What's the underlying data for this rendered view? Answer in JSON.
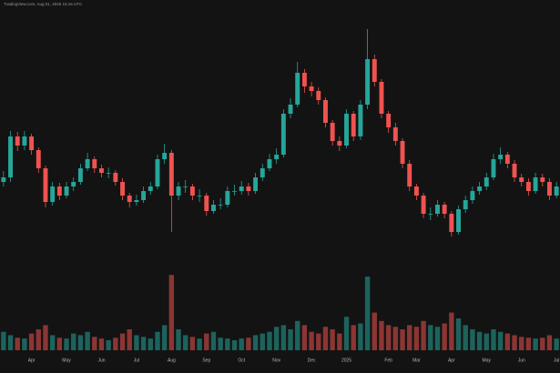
{
  "chart_data": {
    "type": "candlestick",
    "title": "TradingView.com, Aug 01, 2025 15:16 UTC",
    "categories": [
      null,
      null,
      null,
      null,
      "Apr",
      null,
      null,
      null,
      null,
      "May",
      null,
      null,
      null,
      null,
      "Jun",
      null,
      null,
      null,
      null,
      "Jul",
      null,
      null,
      null,
      null,
      "Aug",
      null,
      null,
      null,
      null,
      "Sep",
      null,
      null,
      null,
      null,
      "Oct",
      null,
      null,
      null,
      null,
      "Nov",
      null,
      null,
      null,
      null,
      "Dec",
      null,
      null,
      null,
      null,
      "2025",
      null,
      null,
      null,
      null,
      null,
      "Feb",
      null,
      null,
      null,
      "Mar",
      null,
      null,
      null,
      null,
      "Apr",
      null,
      null,
      null,
      null,
      "May",
      null,
      null,
      null,
      null,
      "Jun",
      null,
      null,
      null,
      null,
      "Jul"
    ],
    "open": [
      100,
      105,
      150,
      140,
      150,
      135,
      115,
      78,
      95,
      85,
      95,
      100,
      115,
      125,
      115,
      110,
      110,
      100,
      85,
      78,
      80,
      90,
      95,
      125,
      132,
      85,
      95,
      95,
      85,
      85,
      68,
      75,
      75,
      90,
      90,
      95,
      90,
      105,
      115,
      125,
      130,
      175,
      185,
      220,
      205,
      200,
      190,
      165,
      145,
      140,
      175,
      150,
      185,
      235,
      210,
      175,
      160,
      145,
      120,
      95,
      85,
      65,
      65,
      75,
      65,
      45,
      70,
      80,
      90,
      95,
      105,
      125,
      130,
      120,
      105,
      100,
      90,
      105,
      100,
      85
    ],
    "high": [
      112,
      156,
      155,
      156,
      153,
      138,
      118,
      100,
      99,
      100,
      105,
      120,
      132,
      128,
      119,
      116,
      113,
      104,
      88,
      86,
      95,
      100,
      130,
      142,
      135,
      100,
      102,
      98,
      92,
      88,
      80,
      82,
      95,
      97,
      101,
      99,
      110,
      120,
      131,
      137,
      180,
      192,
      232,
      224,
      210,
      204,
      193,
      168,
      150,
      180,
      178,
      190,
      268,
      240,
      213,
      178,
      165,
      148,
      124,
      98,
      88,
      72,
      80,
      78,
      68,
      74,
      85,
      95,
      100,
      110,
      131,
      138,
      133,
      124,
      109,
      104,
      110,
      109,
      104,
      100
    ],
    "low": [
      95,
      100,
      134,
      135,
      130,
      110,
      72,
      74,
      80,
      82,
      90,
      97,
      112,
      110,
      105,
      104,
      96,
      80,
      72,
      74,
      77,
      86,
      92,
      120,
      45,
      80,
      88,
      80,
      78,
      63,
      65,
      70,
      72,
      85,
      86,
      85,
      87,
      101,
      112,
      120,
      127,
      170,
      182,
      198,
      194,
      185,
      160,
      140,
      134,
      137,
      145,
      146,
      180,
      205,
      170,
      154,
      140,
      115,
      90,
      80,
      60,
      58,
      62,
      60,
      40,
      42,
      66,
      76,
      86,
      91,
      102,
      120,
      115,
      100,
      95,
      85,
      87,
      95,
      80,
      82
    ],
    "close": [
      105,
      150,
      140,
      150,
      135,
      115,
      78,
      95,
      85,
      95,
      100,
      115,
      125,
      115,
      110,
      110,
      100,
      85,
      78,
      80,
      90,
      95,
      125,
      132,
      85,
      95,
      95,
      85,
      85,
      68,
      75,
      75,
      90,
      90,
      95,
      90,
      105,
      115,
      125,
      130,
      175,
      185,
      220,
      205,
      200,
      190,
      165,
      145,
      140,
      175,
      150,
      185,
      235,
      210,
      175,
      160,
      145,
      120,
      95,
      85,
      65,
      65,
      75,
      65,
      45,
      70,
      80,
      90,
      95,
      105,
      125,
      130,
      120,
      105,
      100,
      90,
      105,
      100,
      85,
      95
    ],
    "volume": [
      22,
      18,
      15,
      14,
      20,
      25,
      30,
      18,
      15,
      14,
      20,
      18,
      22,
      16,
      14,
      12,
      15,
      20,
      25,
      18,
      16,
      14,
      22,
      30,
      90,
      25,
      18,
      16,
      14,
      20,
      22,
      15,
      14,
      12,
      14,
      15,
      18,
      20,
      22,
      28,
      30,
      25,
      35,
      30,
      22,
      20,
      28,
      25,
      20,
      40,
      30,
      32,
      88,
      45,
      35,
      30,
      28,
      25,
      30,
      28,
      35,
      30,
      28,
      32,
      45,
      38,
      30,
      25,
      22,
      20,
      25,
      22,
      20,
      18,
      16,
      15,
      14,
      15,
      18,
      14
    ],
    "ylim": [
      0,
      290
    ],
    "volume_ylim": [
      0,
      100
    ],
    "up_color": "#26a69a",
    "down_color": "#ef5350",
    "background": "#131313"
  }
}
